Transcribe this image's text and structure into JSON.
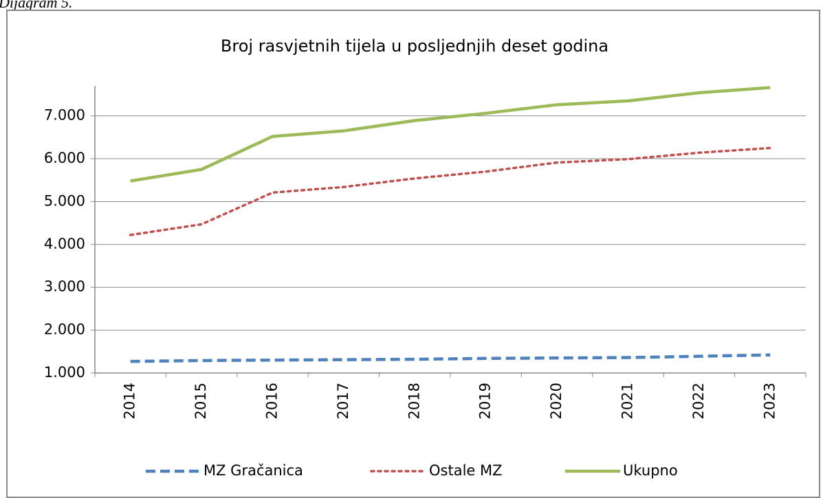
{
  "caption": "Dijagram 5.",
  "chart_data": {
    "type": "line",
    "title": "Broj rasvjetnih tijela  u posljednjih deset godina",
    "categories": [
      "2014",
      "2015",
      "2016",
      "2017",
      "2018",
      "2019",
      "2020",
      "2021",
      "2022",
      "2023"
    ],
    "series": [
      {
        "name": "MZ Gračanica",
        "color": "#4f81bd",
        "style": "dashed",
        "values": [
          1270,
          1290,
          1300,
          1310,
          1320,
          1340,
          1350,
          1360,
          1390,
          1420
        ]
      },
      {
        "name": "Ostale MZ",
        "color": "#c0504d",
        "style": "dotted",
        "values": [
          4220,
          4470,
          5210,
          5340,
          5540,
          5700,
          5910,
          5990,
          6140,
          6250
        ]
      },
      {
        "name": "Ukupno",
        "color": "#9bbb59",
        "style": "solid",
        "values": [
          5480,
          5750,
          6520,
          6650,
          6890,
          7060,
          7260,
          7350,
          7540,
          7660
        ]
      }
    ],
    "ylim": [
      1000,
      7700
    ],
    "yticks": [
      {
        "value": 1000,
        "label": "1.000"
      },
      {
        "value": 2000,
        "label": "2.000"
      },
      {
        "value": 3000,
        "label": "3.000"
      },
      {
        "value": 4000,
        "label": "4.000"
      },
      {
        "value": 5000,
        "label": "5.000"
      },
      {
        "value": 6000,
        "label": "6.000"
      },
      {
        "value": 7000,
        "label": "7.000"
      }
    ],
    "grid": true,
    "legend": "bottom"
  }
}
